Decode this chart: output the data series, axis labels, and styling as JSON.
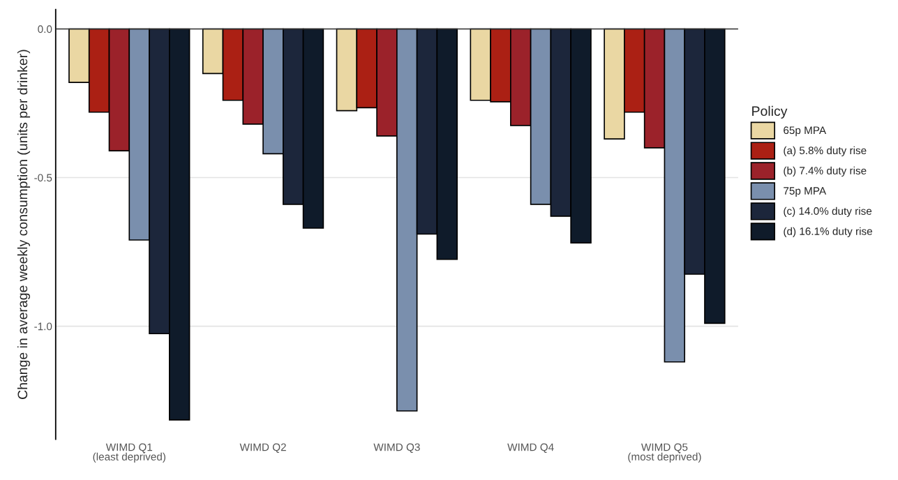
{
  "chart_data": {
    "type": "bar",
    "ylabel": "Change in average weekly consumption (units per drinker)",
    "legend_title": "Policy",
    "categories": [
      "WIMD Q1\n(least deprived)",
      "WIMD Q2",
      "WIMD Q3",
      "WIMD Q4",
      "WIMD Q5\n(most deprived)"
    ],
    "series": [
      {
        "name": "65p MPA",
        "color": "#ead7a3",
        "values": [
          -0.18,
          -0.15,
          -0.275,
          -0.24,
          -0.37
        ]
      },
      {
        "name": "(a) 5.8% duty rise",
        "color": "#ab2014",
        "values": [
          -0.28,
          -0.24,
          -0.265,
          -0.245,
          -0.28
        ]
      },
      {
        "name": "(b) 7.4% duty rise",
        "color": "#9b222a",
        "values": [
          -0.41,
          -0.32,
          -0.36,
          -0.325,
          -0.4
        ]
      },
      {
        "name": "75p MPA",
        "color": "#7a8fad",
        "values": [
          -0.71,
          -0.42,
          -1.285,
          -0.59,
          -1.12
        ]
      },
      {
        "name": "(c) 14.0% duty rise",
        "color": "#1c263b",
        "values": [
          -1.025,
          -0.59,
          -0.69,
          -0.63,
          -0.825
        ]
      },
      {
        "name": "(d) 16.1% duty rise",
        "color": "#0f1b2a",
        "values": [
          -1.315,
          -0.67,
          -0.775,
          -0.72,
          -0.99
        ]
      }
    ],
    "ylim": [
      -1.38,
      0.065
    ],
    "yticks": [
      {
        "value": 0,
        "label": "0.0"
      },
      -0.5,
      {
        "value": -1,
        "label": "-1.0"
      }
    ],
    "ref_lines": [
      {
        "axis": "y",
        "value": 0,
        "color": "#333333"
      }
    ],
    "grid": "y",
    "legend": "right"
  }
}
